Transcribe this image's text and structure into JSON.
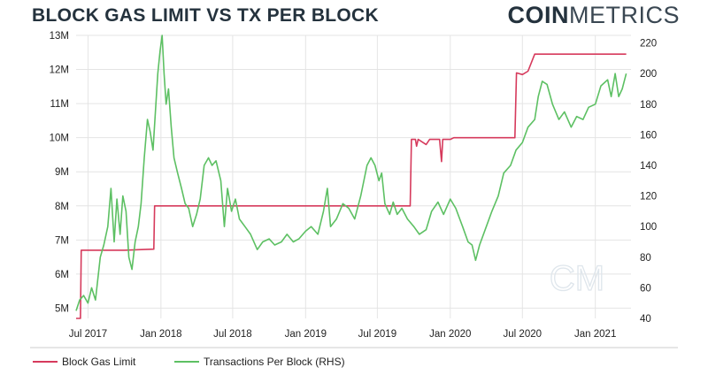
{
  "header": {
    "title": "BLOCK GAS LIMIT VS TX PER BLOCK"
  },
  "logo": {
    "bold": "COIN",
    "light": "METRICS",
    "icon_name": "coinmetrics-logo",
    "watermark": "CM"
  },
  "colors": {
    "gas": "#d63a5c",
    "tx": "#5dc063",
    "grid": "#e4e4e4",
    "axis": "#333333"
  },
  "chart_data": {
    "type": "line",
    "title": "BLOCK GAS LIMIT VS TX PER BLOCK",
    "x": {
      "start": "2017-06-01",
      "end": "2021-04-01"
    },
    "x_ticks": [
      {
        "label": "Jul 2017",
        "date": "2017-07-01"
      },
      {
        "label": "Jan 2018",
        "date": "2018-01-01"
      },
      {
        "label": "Jul 2018",
        "date": "2018-07-01"
      },
      {
        "label": "Jan 2019",
        "date": "2019-01-01"
      },
      {
        "label": "Jul 2019",
        "date": "2019-07-01"
      },
      {
        "label": "Jan 2020",
        "date": "2020-01-01"
      },
      {
        "label": "Jul 2020",
        "date": "2020-07-01"
      },
      {
        "label": "Jan 2021",
        "date": "2021-01-01"
      }
    ],
    "y_left": {
      "ylim": [
        4700000,
        13000000
      ],
      "ticks": [
        {
          "label": "5M",
          "value": 5000000
        },
        {
          "label": "6M",
          "value": 6000000
        },
        {
          "label": "7M",
          "value": 7000000
        },
        {
          "label": "8M",
          "value": 8000000
        },
        {
          "label": "9M",
          "value": 9000000
        },
        {
          "label": "10M",
          "value": 10000000
        },
        {
          "label": "11M",
          "value": 11000000
        },
        {
          "label": "12M",
          "value": 12000000
        },
        {
          "label": "13M",
          "value": 13000000
        }
      ]
    },
    "y_right": {
      "ylim": [
        40,
        225
      ],
      "ticks": [
        {
          "label": "40",
          "value": 40
        },
        {
          "label": "60",
          "value": 60
        },
        {
          "label": "80",
          "value": 80
        },
        {
          "label": "100",
          "value": 100
        },
        {
          "label": "120",
          "value": 120
        },
        {
          "label": "140",
          "value": 140
        },
        {
          "label": "160",
          "value": 160
        },
        {
          "label": "180",
          "value": 180
        },
        {
          "label": "200",
          "value": 200
        },
        {
          "label": "220",
          "value": 220
        }
      ]
    },
    "grid": true,
    "legend_position": "bottom-left",
    "series": [
      {
        "name": "Block Gas Limit",
        "axis": "left",
        "points": [
          [
            "2017-06-01",
            4700000
          ],
          [
            "2017-06-12",
            4700000
          ],
          [
            "2017-06-14",
            6700000
          ],
          [
            "2017-10-01",
            6700000
          ],
          [
            "2017-11-20",
            6720000
          ],
          [
            "2017-12-14",
            6730000
          ],
          [
            "2017-12-16",
            8000000
          ],
          [
            "2018-06-01",
            8000000
          ],
          [
            "2019-01-01",
            8000000
          ],
          [
            "2019-06-01",
            8000000
          ],
          [
            "2019-09-22",
            8000000
          ],
          [
            "2019-09-25",
            9950000
          ],
          [
            "2019-10-05",
            9950000
          ],
          [
            "2019-10-08",
            9750000
          ],
          [
            "2019-10-12",
            9950000
          ],
          [
            "2019-11-01",
            9800000
          ],
          [
            "2019-11-10",
            9950000
          ],
          [
            "2019-12-05",
            9950000
          ],
          [
            "2019-12-10",
            9300000
          ],
          [
            "2019-12-13",
            9950000
          ],
          [
            "2020-01-01",
            9950000
          ],
          [
            "2020-01-10",
            10000000
          ],
          [
            "2020-06-12",
            10000000
          ],
          [
            "2020-06-16",
            11900000
          ],
          [
            "2020-07-01",
            11850000
          ],
          [
            "2020-07-15",
            11950000
          ],
          [
            "2020-08-01",
            12450000
          ],
          [
            "2020-12-01",
            12450000
          ],
          [
            "2021-03-20",
            12450000
          ]
        ]
      },
      {
        "name": "Transactions Per Block (RHS)",
        "axis": "right",
        "points": [
          [
            "2017-06-01",
            45
          ],
          [
            "2017-06-10",
            52
          ],
          [
            "2017-06-20",
            55
          ],
          [
            "2017-07-01",
            50
          ],
          [
            "2017-07-10",
            60
          ],
          [
            "2017-07-20",
            52
          ],
          [
            "2017-08-01",
            80
          ],
          [
            "2017-08-10",
            88
          ],
          [
            "2017-08-20",
            100
          ],
          [
            "2017-08-28",
            125
          ],
          [
            "2017-09-05",
            90
          ],
          [
            "2017-09-12",
            118
          ],
          [
            "2017-09-20",
            95
          ],
          [
            "2017-09-27",
            120
          ],
          [
            "2017-10-05",
            110
          ],
          [
            "2017-10-12",
            80
          ],
          [
            "2017-10-20",
            72
          ],
          [
            "2017-10-28",
            90
          ],
          [
            "2017-11-05",
            100
          ],
          [
            "2017-11-12",
            115
          ],
          [
            "2017-11-20",
            145
          ],
          [
            "2017-11-28",
            170
          ],
          [
            "2017-12-05",
            162
          ],
          [
            "2017-12-12",
            150
          ],
          [
            "2017-12-18",
            175
          ],
          [
            "2017-12-24",
            200
          ],
          [
            "2017-12-30",
            215
          ],
          [
            "2018-01-04",
            225
          ],
          [
            "2018-01-09",
            200
          ],
          [
            "2018-01-14",
            180
          ],
          [
            "2018-01-20",
            190
          ],
          [
            "2018-01-27",
            165
          ],
          [
            "2018-02-03",
            145
          ],
          [
            "2018-02-12",
            135
          ],
          [
            "2018-02-22",
            125
          ],
          [
            "2018-03-03",
            115
          ],
          [
            "2018-03-12",
            112
          ],
          [
            "2018-03-22",
            100
          ],
          [
            "2018-04-01",
            108
          ],
          [
            "2018-04-10",
            118
          ],
          [
            "2018-04-20",
            140
          ],
          [
            "2018-05-01",
            145
          ],
          [
            "2018-05-10",
            140
          ],
          [
            "2018-05-20",
            143
          ],
          [
            "2018-06-01",
            130
          ],
          [
            "2018-06-10",
            100
          ],
          [
            "2018-06-18",
            125
          ],
          [
            "2018-06-28",
            110
          ],
          [
            "2018-07-08",
            118
          ],
          [
            "2018-07-18",
            105
          ],
          [
            "2018-08-01",
            100
          ],
          [
            "2018-08-15",
            95
          ],
          [
            "2018-09-01",
            85
          ],
          [
            "2018-09-15",
            90
          ],
          [
            "2018-10-01",
            92
          ],
          [
            "2018-10-15",
            88
          ],
          [
            "2018-11-01",
            90
          ],
          [
            "2018-11-15",
            95
          ],
          [
            "2018-12-01",
            90
          ],
          [
            "2018-12-15",
            92
          ],
          [
            "2019-01-01",
            97
          ],
          [
            "2019-01-15",
            100
          ],
          [
            "2019-02-01",
            95
          ],
          [
            "2019-02-15",
            110
          ],
          [
            "2019-02-25",
            125
          ],
          [
            "2019-03-05",
            100
          ],
          [
            "2019-03-20",
            105
          ],
          [
            "2019-04-05",
            115
          ],
          [
            "2019-04-20",
            112
          ],
          [
            "2019-05-05",
            105
          ],
          [
            "2019-05-20",
            120
          ],
          [
            "2019-06-05",
            140
          ],
          [
            "2019-06-15",
            145
          ],
          [
            "2019-06-25",
            140
          ],
          [
            "2019-07-05",
            130
          ],
          [
            "2019-07-12",
            135
          ],
          [
            "2019-07-20",
            115
          ],
          [
            "2019-08-01",
            108
          ],
          [
            "2019-08-10",
            116
          ],
          [
            "2019-08-20",
            108
          ],
          [
            "2019-09-01",
            112
          ],
          [
            "2019-09-15",
            105
          ],
          [
            "2019-10-01",
            100
          ],
          [
            "2019-10-15",
            95
          ],
          [
            "2019-11-01",
            98
          ],
          [
            "2019-11-15",
            110
          ],
          [
            "2019-12-01",
            116
          ],
          [
            "2019-12-15",
            108
          ],
          [
            "2020-01-01",
            118
          ],
          [
            "2020-01-15",
            112
          ],
          [
            "2020-02-01",
            100
          ],
          [
            "2020-02-15",
            90
          ],
          [
            "2020-02-25",
            88
          ],
          [
            "2020-03-05",
            78
          ],
          [
            "2020-03-15",
            88
          ],
          [
            "2020-04-01",
            100
          ],
          [
            "2020-04-15",
            110
          ],
          [
            "2020-05-01",
            120
          ],
          [
            "2020-05-15",
            135
          ],
          [
            "2020-06-01",
            140
          ],
          [
            "2020-06-15",
            150
          ],
          [
            "2020-07-01",
            155
          ],
          [
            "2020-07-15",
            165
          ],
          [
            "2020-08-01",
            170
          ],
          [
            "2020-08-10",
            185
          ],
          [
            "2020-08-20",
            195
          ],
          [
            "2020-09-01",
            193
          ],
          [
            "2020-09-15",
            180
          ],
          [
            "2020-10-01",
            170
          ],
          [
            "2020-10-15",
            175
          ],
          [
            "2020-11-01",
            165
          ],
          [
            "2020-11-15",
            172
          ],
          [
            "2020-12-01",
            170
          ],
          [
            "2020-12-15",
            178
          ],
          [
            "2021-01-01",
            180
          ],
          [
            "2021-01-15",
            192
          ],
          [
            "2021-02-01",
            196
          ],
          [
            "2021-02-10",
            185
          ],
          [
            "2021-02-20",
            200
          ],
          [
            "2021-03-01",
            185
          ],
          [
            "2021-03-10",
            190
          ],
          [
            "2021-03-20",
            200
          ]
        ]
      }
    ]
  }
}
